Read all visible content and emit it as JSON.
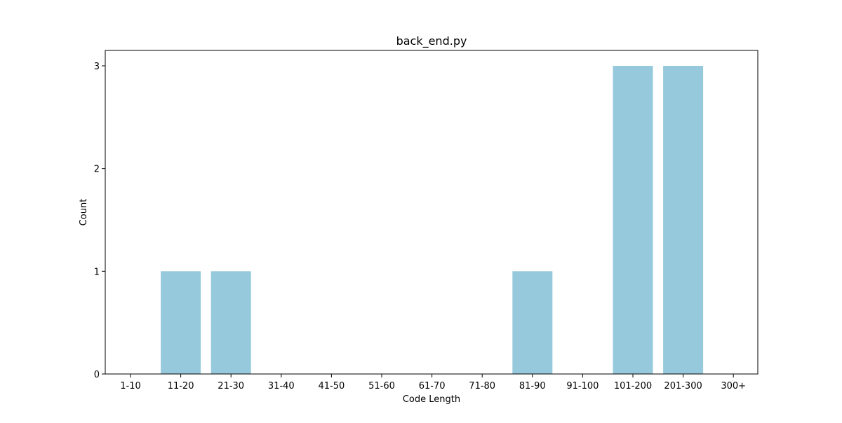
{
  "chart_data": {
    "type": "bar",
    "title": "back_end.py",
    "xlabel": "Code Length",
    "ylabel": "Count",
    "categories": [
      "1-10",
      "11-20",
      "21-30",
      "31-40",
      "41-50",
      "51-60",
      "61-70",
      "71-80",
      "81-90",
      "91-100",
      "101-200",
      "201-300",
      "300+"
    ],
    "values": [
      0,
      1,
      1,
      0,
      0,
      0,
      0,
      0,
      1,
      0,
      3,
      3,
      0
    ],
    "ylim": [
      0,
      3.15
    ],
    "yticks": [
      0,
      1,
      2,
      3
    ],
    "grid": false,
    "legend": false,
    "bar_color": "#96c9dc",
    "axis_color": "#000000"
  }
}
